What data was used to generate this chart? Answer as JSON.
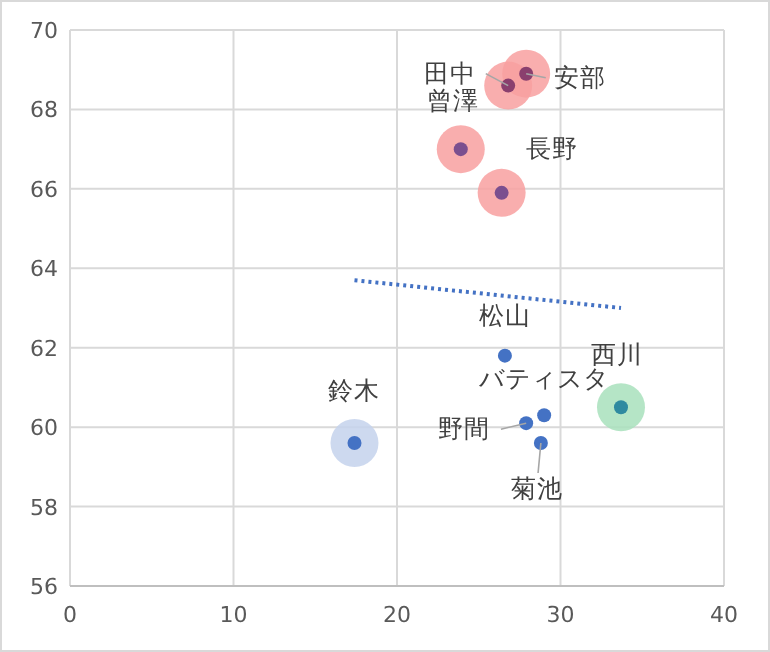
{
  "chart_data": {
    "type": "scatter",
    "xlim": [
      0,
      40
    ],
    "xticks": [
      0,
      10,
      20,
      30,
      40
    ],
    "ylim": [
      56,
      70
    ],
    "yticks": [
      56,
      58,
      60,
      62,
      64,
      66,
      68,
      70
    ],
    "grid": true,
    "series": [
      {
        "type": "bubble",
        "x": [
          27.9,
          26.8,
          23.9,
          26.4,
          33.7,
          17.4
        ],
        "values": [
          68.9,
          68.6,
          67.0,
          65.9,
          60.5,
          59.6
        ],
        "sizes": [
          1,
          1,
          1,
          1,
          1,
          1
        ],
        "colors": [
          "#f8a0a0",
          "#f8a0a0",
          "#f8a0a0",
          "#f8a0a0",
          "#a8e0bc",
          "#c4d2ec"
        ]
      },
      {
        "type": "line",
        "x": [
          17.4,
          33.7
        ],
        "values": [
          63.7,
          63.0
        ],
        "color": "#4472c4",
        "line_style": "dotted"
      },
      {
        "marker": "circle",
        "x": [
          27.9,
          26.8,
          23.9,
          26.4,
          26.6,
          29.0,
          27.9,
          28.8,
          33.7,
          17.4
        ],
        "values": [
          68.9,
          68.6,
          67.0,
          65.9,
          61.8,
          60.3,
          60.1,
          59.6,
          60.5,
          59.6
        ],
        "colors": [
          "#8a3f6e",
          "#8a3f6e",
          "#7b4f8f",
          "#7b4f8f",
          "#4472c4",
          "#4472c4",
          "#4472c4",
          "#4472c4",
          "#2f8aa0",
          "#4472c4"
        ]
      }
    ],
    "annotations": [
      {
        "text": "安部",
        "x": 27.9,
        "y": 68.9
      },
      {
        "text": "田中",
        "x": 26.8,
        "y": 68.6
      },
      {
        "text": "曾澤",
        "x": 23.9,
        "y": 67.0
      },
      {
        "text": "長野",
        "x": 26.4,
        "y": 65.9
      },
      {
        "text": "松山",
        "x": 26.6,
        "y": 61.8
      },
      {
        "text": "バティスタ",
        "x": 29.0,
        "y": 60.3
      },
      {
        "text": "野間",
        "x": 27.9,
        "y": 60.1
      },
      {
        "text": "菊池",
        "x": 28.8,
        "y": 59.6
      },
      {
        "text": "西川",
        "x": 33.7,
        "y": 60.5
      },
      {
        "text": "鈴木",
        "x": 17.4,
        "y": 59.6
      }
    ]
  }
}
